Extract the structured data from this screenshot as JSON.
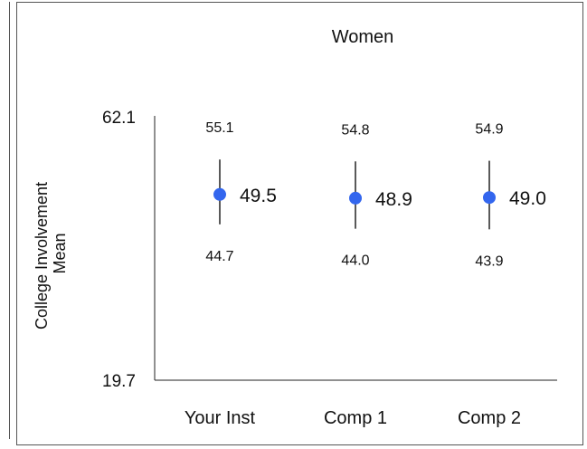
{
  "chart_data": {
    "type": "errorbar",
    "title": "Women",
    "ylabel_line1": "College Involvement",
    "ylabel_line2": "Mean",
    "ylim": [
      19.7,
      62.1
    ],
    "ymax_label": "62.1",
    "ymin_label": "19.7",
    "categories": [
      "Your Inst",
      "Comp 1",
      "Comp 2"
    ],
    "means": [
      49.5,
      48.9,
      49.0
    ],
    "upper": [
      55.1,
      54.8,
      54.9
    ],
    "lower": [
      44.7,
      44.0,
      43.9
    ],
    "mean_labels": [
      "49.5",
      "48.9",
      "49.0"
    ],
    "upper_labels": [
      "55.1",
      "54.8",
      "54.9"
    ],
    "lower_labels": [
      "44.7",
      "44.0",
      "43.9"
    ],
    "marker_color": "#3366ee",
    "line_color": "#222222"
  }
}
